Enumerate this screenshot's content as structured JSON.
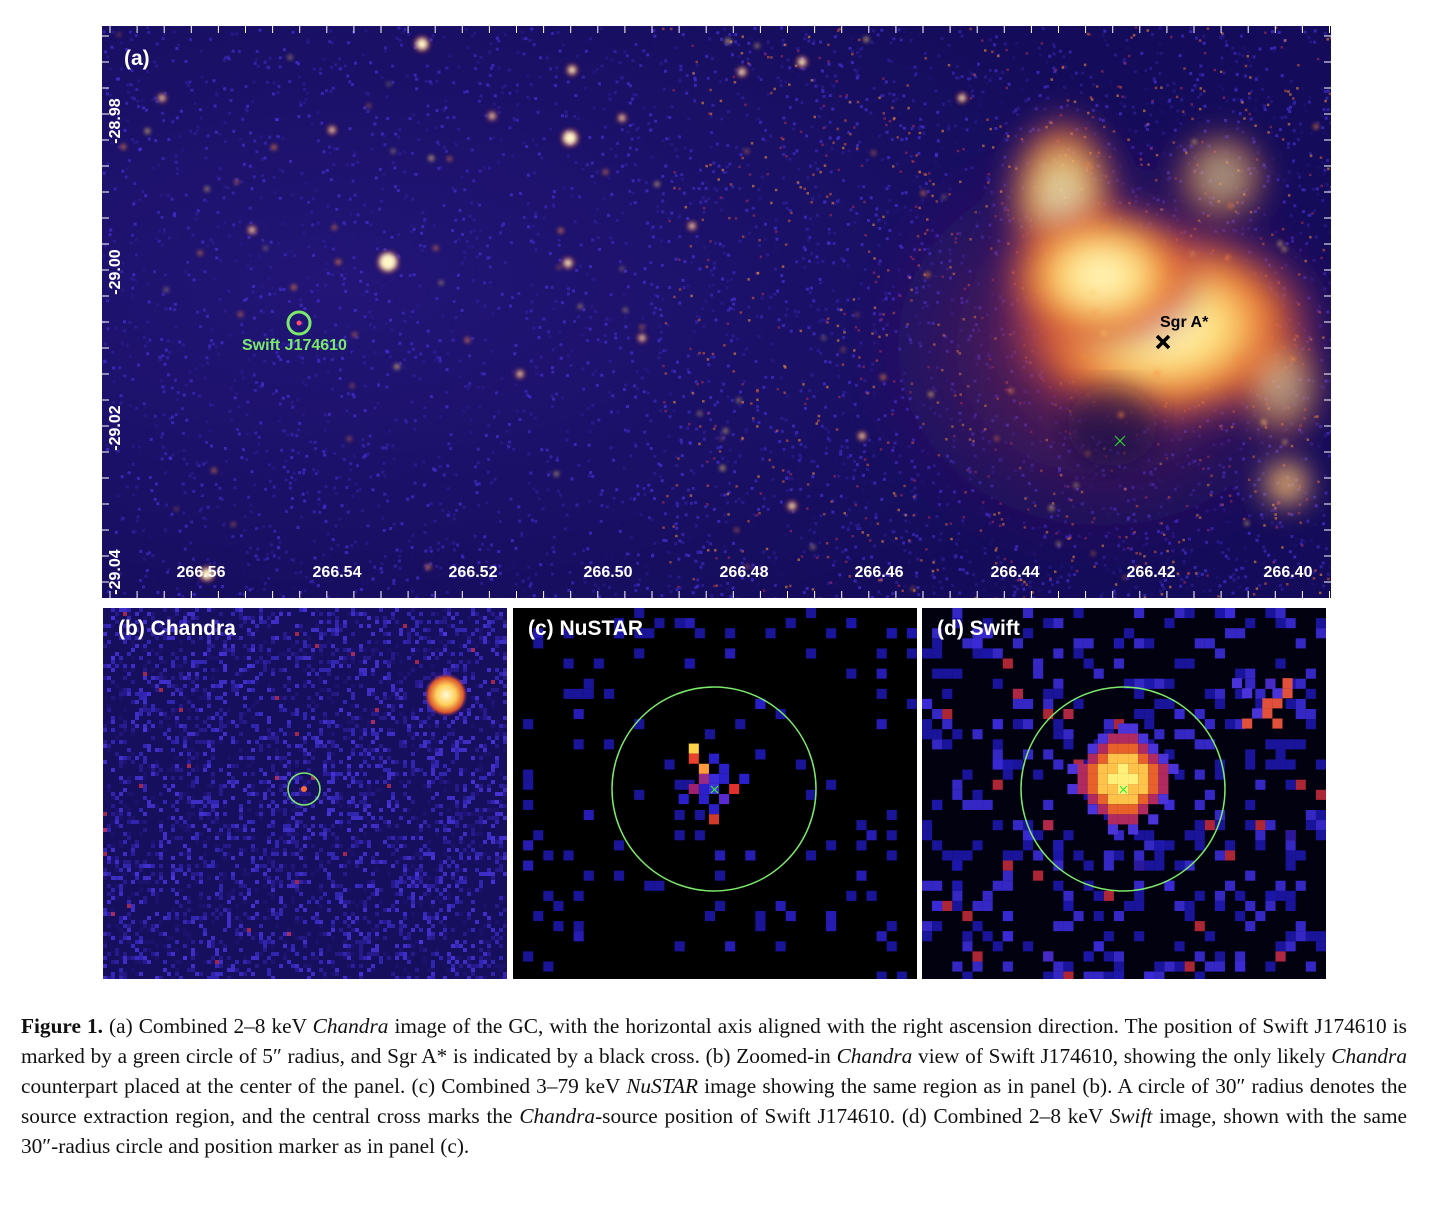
{
  "panels": {
    "a": {
      "label": "(a)",
      "x_ticks": [
        "266.56",
        "266.54",
        "266.52",
        "266.50",
        "266.48",
        "266.46",
        "266.44",
        "266.42",
        "266.40"
      ],
      "y_ticks": [
        "-28.98",
        "-29.00",
        "-29.02",
        "-29.04"
      ],
      "source_label": "Swift J174610",
      "sgr_label": "Sgr A*"
    },
    "b": {
      "label": "(b) Chandra"
    },
    "c": {
      "label": "(c) NuSTAR"
    },
    "d": {
      "label": "(d) Swift"
    }
  },
  "colors": {
    "marker_circle": "#7be96a",
    "sgr_cross": "#000000",
    "background_chandra": "#160f5e"
  },
  "caption": {
    "lead": "Figure 1.",
    "parts": [
      {
        "t": " (a) Combined 2–8 keV "
      },
      {
        "t": "Chandra",
        "i": true
      },
      {
        "t": " image of the GC, with the horizontal axis aligned with the right ascension direction. The position of Swift J174610 is marked by a green circle of 5″ radius, and Sgr A* is indicated by a black cross. (b) Zoomed-in "
      },
      {
        "t": "Chandra",
        "i": true
      },
      {
        "t": " view of Swift J174610, showing the only likely "
      },
      {
        "t": "Chandra",
        "i": true
      },
      {
        "t": " counterpart placed at the center of the panel. (c) Combined 3–79 keV "
      },
      {
        "t": "NuSTAR",
        "i": true
      },
      {
        "t": " image showing the same region as in panel (b). A circle of 30″ radius denotes the source extraction region, and the central cross marks the "
      },
      {
        "t": "Chandra",
        "i": true
      },
      {
        "t": "-source position of Swift J174610. (d) Combined 2–8 keV "
      },
      {
        "t": "Swift",
        "i": true
      },
      {
        "t": " image, shown with the same 30″-radius circle and position marker as in panel (c)."
      }
    ]
  }
}
